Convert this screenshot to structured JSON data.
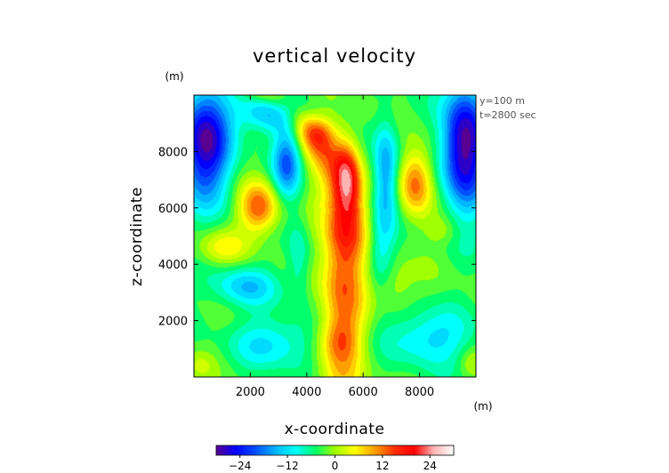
{
  "chart_data": {
    "type": "heatmap",
    "title": "vertical velocity",
    "xlabel": "x-coordinate",
    "ylabel": "z-coordinate",
    "x_unit": "(m)",
    "y_unit": "(m)",
    "annotations": [
      "y=100  m",
      "t=2800 sec"
    ],
    "xlim": [
      0,
      10000
    ],
    "ylim": [
      0,
      10000
    ],
    "xticks": [
      2000,
      4000,
      6000,
      8000
    ],
    "yticks": [
      2000,
      4000,
      6000,
      8000
    ],
    "xtick_labels": [
      "2000",
      "4000",
      "6000",
      "8000"
    ],
    "ytick_labels": [
      "2000",
      "4000",
      "6000",
      "8000"
    ],
    "value_range": [
      -30,
      30
    ],
    "colorbar_ticks": [
      -24,
      -12,
      0,
      12,
      24
    ],
    "colorbar_labels": [
      "−24",
      "−12",
      "0",
      "12",
      "24"
    ],
    "colorscale": [
      "#5a0090",
      "#0000ff",
      "#0050ff",
      "#00b4ff",
      "#00ffff",
      "#00ff6a",
      "#a0ff00",
      "#ffff00",
      "#ffa000",
      "#ff3000",
      "#ff0000",
      "#ffb4b4",
      "#ffffff"
    ],
    "features": [
      {
        "name": "central updraft core",
        "x": 5300,
        "z": 7000,
        "w": 30
      },
      {
        "name": "central updraft lower",
        "x": 5200,
        "z": 1400,
        "w": 18
      },
      {
        "name": "left updraft",
        "x": 2200,
        "z": 6000,
        "w": 16
      },
      {
        "name": "right updraft",
        "x": 7800,
        "z": 6800,
        "w": 16
      },
      {
        "name": "left-top downdraft",
        "x": 500,
        "z": 8200,
        "w": -24
      },
      {
        "name": "right-top downdraft",
        "x": 9500,
        "z": 8500,
        "w": -26
      },
      {
        "name": "lower-left downdraft",
        "x": 2500,
        "z": 1200,
        "w": -10
      },
      {
        "name": "lower-right downdraft",
        "x": 8500,
        "z": 1500,
        "w": -12
      }
    ]
  }
}
